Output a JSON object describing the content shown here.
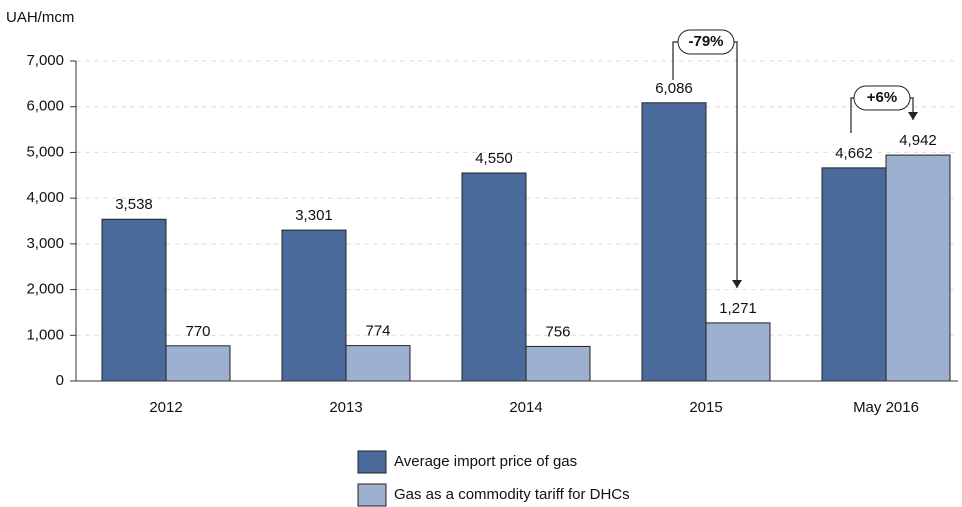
{
  "chart_data": {
    "type": "bar",
    "ylabel": "UAH/mcm",
    "categories": [
      "2012",
      "2013",
      "2014",
      "2015",
      "May 2016"
    ],
    "series": [
      {
        "name": "Average import price of gas",
        "color": "#4a6a9b",
        "values": [
          3538,
          3301,
          4550,
          6086,
          4662
        ],
        "value_labels": [
          "3,538",
          "3,301",
          "4,550",
          "6,086",
          "4,662"
        ]
      },
      {
        "name": "Gas as a commodity tariff for DHCs",
        "color": "#9db0cf",
        "values": [
          770,
          774,
          756,
          1271,
          4942
        ],
        "value_labels": [
          "770",
          "774",
          "756",
          "1,271",
          "4,942"
        ]
      }
    ],
    "ylim": [
      0,
      7000
    ],
    "yticks": [
      0,
      {
        "value": 1000,
        "label": "1,000"
      },
      {
        "value": 2000,
        "label": "2,000"
      },
      {
        "value": 3000,
        "label": "3,000"
      },
      {
        "value": 4000,
        "label": "4,000"
      },
      {
        "value": 5000,
        "label": "5,000"
      },
      {
        "value": 6000,
        "label": "6,000"
      },
      {
        "value": 7000,
        "label": "7,000"
      }
    ],
    "grid": true,
    "legend": "bottom",
    "annotations": [
      "-79%",
      "+6%"
    ]
  }
}
